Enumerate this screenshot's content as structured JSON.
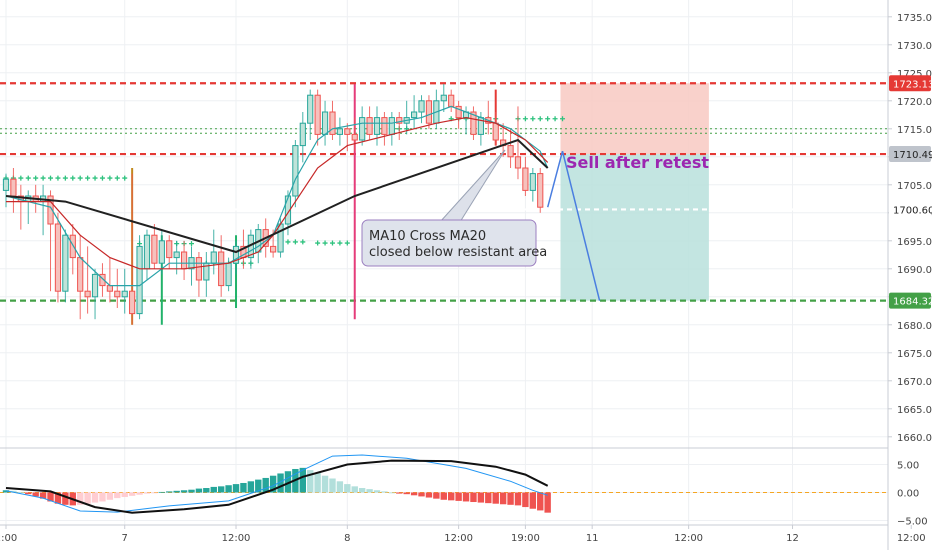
{
  "chart_data": {
    "type": "candlestick",
    "title": "",
    "price_axis": {
      "min": 1658,
      "max": 1738,
      "ticks": [
        1735,
        1730,
        1725,
        1720,
        1715,
        1710,
        1705,
        1700,
        1695,
        1690,
        1685,
        1680,
        1675,
        1670,
        1665,
        1660
      ]
    },
    "time_axis": {
      "labels": [
        {
          "text": "2:00",
          "bar": 0
        },
        {
          "text": "7",
          "bar": 16
        },
        {
          "text": "12:00",
          "bar": 31
        },
        {
          "text": "8",
          "bar": 46
        },
        {
          "text": "12:00",
          "bar": 61
        },
        {
          "text": "19:00",
          "bar": 70
        },
        {
          "text": "11",
          "bar": 79
        },
        {
          "text": "12:00",
          "bar": 92
        },
        {
          "text": "12",
          "bar": 106
        },
        {
          "text": "12:00",
          "bar": 122
        }
      ]
    },
    "candles": [
      {
        "o": 1704,
        "h": 1707,
        "l": 1701,
        "c": 1706
      },
      {
        "o": 1706,
        "h": 1708,
        "l": 1700,
        "c": 1703
      },
      {
        "o": 1703,
        "h": 1705,
        "l": 1697,
        "c": 1702
      },
      {
        "o": 1702,
        "h": 1704,
        "l": 1698,
        "c": 1703
      },
      {
        "o": 1703,
        "h": 1705,
        "l": 1700,
        "c": 1702
      },
      {
        "o": 1702,
        "h": 1705,
        "l": 1696,
        "c": 1703
      },
      {
        "o": 1703,
        "h": 1704,
        "l": 1686,
        "c": 1698
      },
      {
        "o": 1698,
        "h": 1700,
        "l": 1684,
        "c": 1686
      },
      {
        "o": 1686,
        "h": 1697,
        "l": 1684,
        "c": 1696
      },
      {
        "o": 1696,
        "h": 1698,
        "l": 1689,
        "c": 1692
      },
      {
        "o": 1692,
        "h": 1696,
        "l": 1681,
        "c": 1686
      },
      {
        "o": 1686,
        "h": 1694,
        "l": 1682,
        "c": 1685
      },
      {
        "o": 1685,
        "h": 1690,
        "l": 1681,
        "c": 1689
      },
      {
        "o": 1689,
        "h": 1691,
        "l": 1685,
        "c": 1687
      },
      {
        "o": 1687,
        "h": 1692,
        "l": 1684,
        "c": 1686
      },
      {
        "o": 1686,
        "h": 1690,
        "l": 1683,
        "c": 1685
      },
      {
        "o": 1685,
        "h": 1690,
        "l": 1682,
        "c": 1686
      },
      {
        "o": 1686,
        "h": 1707,
        "l": 1680,
        "c": 1682
      },
      {
        "o": 1682,
        "h": 1696,
        "l": 1681,
        "c": 1694
      },
      {
        "o": 1690,
        "h": 1697,
        "l": 1688,
        "c": 1696
      },
      {
        "o": 1696,
        "h": 1698,
        "l": 1690,
        "c": 1691
      },
      {
        "o": 1691,
        "h": 1697,
        "l": 1689,
        "c": 1695
      },
      {
        "o": 1695,
        "h": 1696,
        "l": 1690,
        "c": 1692
      },
      {
        "o": 1692,
        "h": 1695,
        "l": 1689,
        "c": 1693
      },
      {
        "o": 1693,
        "h": 1695,
        "l": 1688,
        "c": 1690
      },
      {
        "o": 1690,
        "h": 1694,
        "l": 1687,
        "c": 1692
      },
      {
        "o": 1692,
        "h": 1693,
        "l": 1685,
        "c": 1688
      },
      {
        "o": 1688,
        "h": 1693,
        "l": 1685,
        "c": 1691
      },
      {
        "o": 1691,
        "h": 1697,
        "l": 1689,
        "c": 1693
      },
      {
        "o": 1693,
        "h": 1696,
        "l": 1685,
        "c": 1687
      },
      {
        "o": 1687,
        "h": 1692,
        "l": 1686,
        "c": 1691
      },
      {
        "o": 1691,
        "h": 1695,
        "l": 1689,
        "c": 1694
      },
      {
        "o": 1694,
        "h": 1697,
        "l": 1690,
        "c": 1692
      },
      {
        "o": 1692,
        "h": 1697,
        "l": 1690,
        "c": 1696
      },
      {
        "o": 1693,
        "h": 1698,
        "l": 1691,
        "c": 1697
      },
      {
        "o": 1697,
        "h": 1699,
        "l": 1692,
        "c": 1694
      },
      {
        "o": 1694,
        "h": 1697,
        "l": 1692,
        "c": 1693
      },
      {
        "o": 1693,
        "h": 1699,
        "l": 1692,
        "c": 1698
      },
      {
        "o": 1698,
        "h": 1704,
        "l": 1696,
        "c": 1703
      },
      {
        "o": 1703,
        "h": 1713,
        "l": 1701,
        "c": 1712
      },
      {
        "o": 1712,
        "h": 1718,
        "l": 1709,
        "c": 1716
      },
      {
        "o": 1716,
        "h": 1722,
        "l": 1713,
        "c": 1721
      },
      {
        "o": 1721,
        "h": 1722,
        "l": 1712,
        "c": 1714
      },
      {
        "o": 1714,
        "h": 1720,
        "l": 1712,
        "c": 1718
      },
      {
        "o": 1718,
        "h": 1720,
        "l": 1713,
        "c": 1714
      },
      {
        "o": 1714,
        "h": 1717,
        "l": 1712,
        "c": 1715
      },
      {
        "o": 1715,
        "h": 1716,
        "l": 1711,
        "c": 1714
      },
      {
        "o": 1714,
        "h": 1717,
        "l": 1711,
        "c": 1713
      },
      {
        "o": 1713,
        "h": 1719,
        "l": 1712,
        "c": 1717
      },
      {
        "o": 1717,
        "h": 1719,
        "l": 1713,
        "c": 1714
      },
      {
        "o": 1714,
        "h": 1719,
        "l": 1712,
        "c": 1717
      },
      {
        "o": 1717,
        "h": 1718,
        "l": 1712,
        "c": 1714
      },
      {
        "o": 1714,
        "h": 1718,
        "l": 1712,
        "c": 1717
      },
      {
        "o": 1717,
        "h": 1718,
        "l": 1713,
        "c": 1716
      },
      {
        "o": 1716,
        "h": 1720,
        "l": 1714,
        "c": 1717
      },
      {
        "o": 1717,
        "h": 1721,
        "l": 1715,
        "c": 1718
      },
      {
        "o": 1718,
        "h": 1721,
        "l": 1716,
        "c": 1720
      },
      {
        "o": 1720,
        "h": 1721,
        "l": 1715,
        "c": 1716
      },
      {
        "o": 1716,
        "h": 1722,
        "l": 1715,
        "c": 1720
      },
      {
        "o": 1720,
        "h": 1723,
        "l": 1718,
        "c": 1721
      },
      {
        "o": 1721,
        "h": 1722,
        "l": 1718,
        "c": 1719
      },
      {
        "o": 1719,
        "h": 1720,
        "l": 1715,
        "c": 1717
      },
      {
        "o": 1717,
        "h": 1719,
        "l": 1714,
        "c": 1718
      },
      {
        "o": 1718,
        "h": 1719,
        "l": 1713,
        "c": 1714
      },
      {
        "o": 1714,
        "h": 1718,
        "l": 1712,
        "c": 1717
      },
      {
        "o": 1717,
        "h": 1720,
        "l": 1714,
        "c": 1716
      },
      {
        "o": 1716,
        "h": 1718,
        "l": 1712,
        "c": 1713
      },
      {
        "o": 1713,
        "h": 1716,
        "l": 1710,
        "c": 1712
      },
      {
        "o": 1712,
        "h": 1715,
        "l": 1708,
        "c": 1710
      },
      {
        "o": 1710,
        "h": 1719,
        "l": 1706,
        "c": 1708
      },
      {
        "o": 1708,
        "h": 1710,
        "l": 1703,
        "c": 1704
      },
      {
        "o": 1704,
        "h": 1708,
        "l": 1702,
        "c": 1707
      },
      {
        "o": 1707,
        "h": 1708,
        "l": 1700,
        "c": 1701
      }
    ],
    "ma10": [
      [
        0,
        1703
      ],
      [
        6,
        1701
      ],
      [
        10,
        1692
      ],
      [
        14,
        1687
      ],
      [
        18,
        1687
      ],
      [
        22,
        1691
      ],
      [
        26,
        1691
      ],
      [
        30,
        1691
      ],
      [
        34,
        1694
      ],
      [
        36,
        1696
      ],
      [
        39,
        1706
      ],
      [
        42,
        1713
      ],
      [
        44,
        1715
      ],
      [
        48,
        1716
      ],
      [
        52,
        1716
      ],
      [
        56,
        1717
      ],
      [
        60,
        1719
      ],
      [
        64,
        1717
      ],
      [
        68,
        1715
      ],
      [
        72,
        1711
      ],
      [
        73,
        1708
      ]
    ],
    "ma20": [
      [
        0,
        1702
      ],
      [
        6,
        1702
      ],
      [
        10,
        1696
      ],
      [
        14,
        1692
      ],
      [
        18,
        1690
      ],
      [
        24,
        1690
      ],
      [
        30,
        1691
      ],
      [
        34,
        1693
      ],
      [
        36,
        1696
      ],
      [
        39,
        1702
      ],
      [
        42,
        1708
      ],
      [
        46,
        1712
      ],
      [
        52,
        1714
      ],
      [
        58,
        1716
      ],
      [
        62,
        1717
      ],
      [
        66,
        1716
      ],
      [
        70,
        1713
      ],
      [
        73,
        1709
      ]
    ],
    "zigzag": [
      [
        0,
        1703
      ],
      [
        8,
        1702
      ],
      [
        31,
        1693
      ],
      [
        47,
        1703
      ],
      [
        69,
        1713
      ],
      [
        73,
        1708
      ]
    ],
    "support_resistance": [
      {
        "price": 1723.13,
        "label": "1723.13",
        "color": "#e53935"
      },
      {
        "price": 1710.49,
        "label": "1710.49",
        "color": "#e53935"
      },
      {
        "price": 1684.32,
        "label": "1684.32",
        "color": "#43a047"
      }
    ],
    "dotted_green_levels": [
      1715,
      1714.2
    ],
    "white_dashed_level": 1700.6,
    "current_price_label": "1700.60",
    "step_markers": [
      {
        "price": 1706.2,
        "from": 0,
        "to": 16
      },
      {
        "price": 1694.5,
        "from": 18,
        "to": 25
      },
      {
        "price": 1691.0,
        "from": 26,
        "to": 33
      },
      {
        "price": 1694.8,
        "from": 37,
        "to": 40
      },
      {
        "price": 1694.6,
        "from": 42,
        "to": 46
      },
      {
        "price": 1715.0,
        "from": 48,
        "to": 54
      },
      {
        "price": 1716.8,
        "from": 60,
        "to": 66
      },
      {
        "price": 1716.8,
        "from": 69,
        "to": 75
      }
    ],
    "vertical_spikes": [
      {
        "bar": 17,
        "from": 1708,
        "to": 1680,
        "color": "#c1891d"
      },
      {
        "bar": 21,
        "from": 1696,
        "to": 1680,
        "color": "#21b26a"
      },
      {
        "bar": 31,
        "from": 1696,
        "to": 1683,
        "color": "#21b26a"
      },
      {
        "bar": 47,
        "from": 1723,
        "to": 1681,
        "color": "#e53c7a"
      },
      {
        "bar": 66,
        "from": 1722,
        "to": 1712,
        "color": "#e53935"
      }
    ],
    "projection": [
      [
        73,
        1701
      ],
      [
        75,
        1711
      ],
      [
        80,
        1684.3
      ]
    ],
    "sell_zone": {
      "from_bar": 75,
      "to_bar": 95,
      "top": 1723.13,
      "entry": 1710.49,
      "target": 1684.32
    },
    "annotations": [
      {
        "text_lines": [
          "MA10 Cross MA20",
          "closed below resistant area"
        ]
      },
      {
        "text": "Sell after retest"
      }
    ],
    "oscillator": {
      "ticks": [
        5.0,
        0.0,
        -5.0
      ],
      "tick_labels": [
        "5.00",
        "0.00",
        "−5.00"
      ],
      "histogram": [
        0.4,
        0.3,
        0.1,
        -0.3,
        -0.7,
        -1.1,
        -1.6,
        -2.0,
        -2.2,
        -2.3,
        -2.2,
        -2.0,
        -1.8,
        -1.6,
        -1.3,
        -1.0,
        -0.8,
        -0.6,
        -0.4,
        -0.2,
        -0.1,
        0.1,
        0.2,
        0.3,
        0.4,
        0.5,
        0.7,
        0.8,
        1.0,
        1.1,
        1.3,
        1.5,
        1.7,
        2.0,
        2.3,
        2.6,
        3.0,
        3.4,
        3.8,
        4.2,
        4.4,
        4.0,
        3.5,
        3.0,
        2.5,
        2.0,
        1.5,
        1.1,
        0.8,
        0.6,
        0.4,
        0.2,
        0.0,
        -0.2,
        -0.3,
        -0.5,
        -0.7,
        -0.9,
        -1.1,
        -1.3,
        -1.4,
        -1.5,
        -1.6,
        -1.7,
        -1.8,
        -1.9,
        -2.0,
        -2.1,
        -2.2,
        -2.3,
        -2.6,
        -2.9,
        -3.2,
        -3.6
      ],
      "signal_line": [
        [
          0,
          0.8
        ],
        [
          6,
          0.2
        ],
        [
          12,
          -2.6
        ],
        [
          17,
          -3.6
        ],
        [
          24,
          -3.0
        ],
        [
          30,
          -2.2
        ],
        [
          36,
          0.5
        ],
        [
          40,
          2.8
        ],
        [
          46,
          5.0
        ],
        [
          52,
          5.7
        ],
        [
          60,
          5.6
        ],
        [
          66,
          4.6
        ],
        [
          70,
          3.2
        ],
        [
          73,
          1.2
        ]
      ],
      "macd_line": [
        [
          0,
          0.3
        ],
        [
          5,
          -1.0
        ],
        [
          10,
          -3.3
        ],
        [
          15,
          -3.5
        ],
        [
          22,
          -2.4
        ],
        [
          30,
          -1.5
        ],
        [
          36,
          1.2
        ],
        [
          40,
          4.0
        ],
        [
          44,
          6.5
        ],
        [
          48,
          6.7
        ],
        [
          54,
          6.1
        ],
        [
          62,
          4.3
        ],
        [
          68,
          2.0
        ],
        [
          71,
          0.4
        ],
        [
          73,
          -0.5
        ]
      ],
      "zero_line_color": "#f5a623"
    },
    "colors": {
      "up": "#26a69a",
      "down": "#ef5350",
      "ma10": "#2aa3a9",
      "ma20": "#c62828",
      "zigzag": "#212121",
      "projection": "#4a7ee0",
      "sell_text": "#9c27b0",
      "risk_zone": "#f8c9c2",
      "reward_zone": "#b9e1dc"
    }
  }
}
